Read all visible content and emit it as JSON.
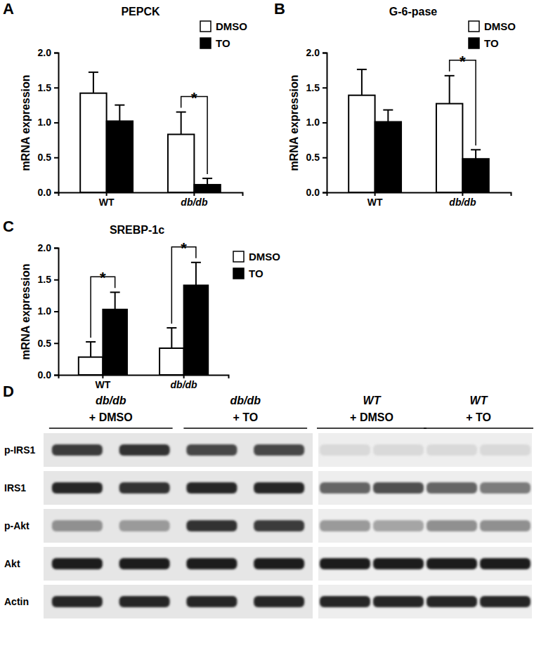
{
  "chart_data": [
    {
      "type": "bar",
      "panel_label": "A",
      "title": "PEPCK",
      "y_label": "mRNA expression",
      "categories": [
        "WT",
        "db/db"
      ],
      "series": [
        {
          "name": "DMSO",
          "color": "#ffffff",
          "values": [
            1.42,
            0.83
          ],
          "errors": [
            0.3,
            0.32
          ]
        },
        {
          "name": "TO",
          "color": "#000000",
          "values": [
            1.02,
            0.11
          ],
          "errors": [
            0.23,
            0.09
          ]
        }
      ],
      "ylim": [
        0,
        2
      ],
      "yticks": [
        {
          "value": 0,
          "label": "0.0"
        },
        0.5,
        {
          "value": 1,
          "label": "1.0"
        },
        1.5,
        {
          "value": 2,
          "label": "2.0"
        }
      ],
      "legend": "top-right",
      "annotations": [
        {
          "text": "*",
          "category": "db/db"
        }
      ]
    },
    {
      "type": "bar",
      "panel_label": "B",
      "title": "G-6-pase",
      "y_label": "mRNA expression",
      "categories": [
        "WT",
        "db/db"
      ],
      "series": [
        {
          "name": "DMSO",
          "color": "#ffffff",
          "values": [
            1.39,
            1.27
          ],
          "errors": [
            0.37,
            0.4
          ]
        },
        {
          "name": "TO",
          "color": "#000000",
          "values": [
            1.01,
            0.48
          ],
          "errors": [
            0.17,
            0.13
          ]
        }
      ],
      "ylim": [
        0,
        2
      ],
      "yticks": [
        {
          "value": 0,
          "label": "0.0"
        },
        0.5,
        {
          "value": 1,
          "label": "1.0"
        },
        1.5,
        {
          "value": 2,
          "label": "2.0"
        }
      ],
      "legend": "top-right",
      "annotations": [
        {
          "text": "*",
          "category": "db/db"
        }
      ]
    },
    {
      "type": "bar",
      "panel_label": "C",
      "title": "SREBP-1c",
      "y_label": "mRNA expression",
      "categories": [
        "WT",
        "db/db"
      ],
      "series": [
        {
          "name": "DMSO",
          "color": "#ffffff",
          "values": [
            0.28,
            0.42
          ],
          "errors": [
            0.24,
            0.32
          ]
        },
        {
          "name": "TO",
          "color": "#000000",
          "values": [
            1.03,
            1.41
          ],
          "errors": [
            0.27,
            0.36
          ]
        }
      ],
      "ylim": [
        0,
        2
      ],
      "yticks": [
        {
          "value": 0,
          "label": "0.0"
        },
        0.5,
        {
          "value": 1,
          "label": "1.0"
        },
        1.5,
        {
          "value": 2,
          "label": "2.0"
        }
      ],
      "legend": "top-right",
      "annotations": [
        {
          "text": "*",
          "category": "WT"
        },
        {
          "text": "*",
          "category": "db/db"
        }
      ]
    }
  ],
  "blot": {
    "panel_label": "D",
    "groups": [
      {
        "genotype": "db/db",
        "treatment": "+ DMSO"
      },
      {
        "genotype": "db/db",
        "treatment": "+ TO"
      },
      {
        "genotype": "WT",
        "treatment": "+ DMSO"
      },
      {
        "genotype": "WT",
        "treatment": "+ TO"
      }
    ],
    "rows": [
      {
        "name": "p-IRS1",
        "intensity": [
          0.8,
          0.85,
          0.75,
          0.75,
          0.05,
          0.05,
          0.05,
          0.05
        ]
      },
      {
        "name": "IRS1",
        "intensity": [
          0.9,
          0.85,
          0.9,
          0.9,
          0.6,
          0.7,
          0.6,
          0.5
        ]
      },
      {
        "name": "p-Akt",
        "intensity": [
          0.4,
          0.35,
          0.85,
          0.8,
          0.35,
          0.3,
          0.4,
          0.4
        ]
      },
      {
        "name": "Akt",
        "intensity": [
          0.95,
          0.95,
          0.95,
          0.95,
          0.95,
          0.95,
          0.95,
          0.95
        ]
      },
      {
        "name": "Actin",
        "intensity": [
          0.9,
          0.9,
          0.9,
          0.9,
          0.9,
          0.9,
          0.9,
          0.9
        ]
      }
    ]
  }
}
